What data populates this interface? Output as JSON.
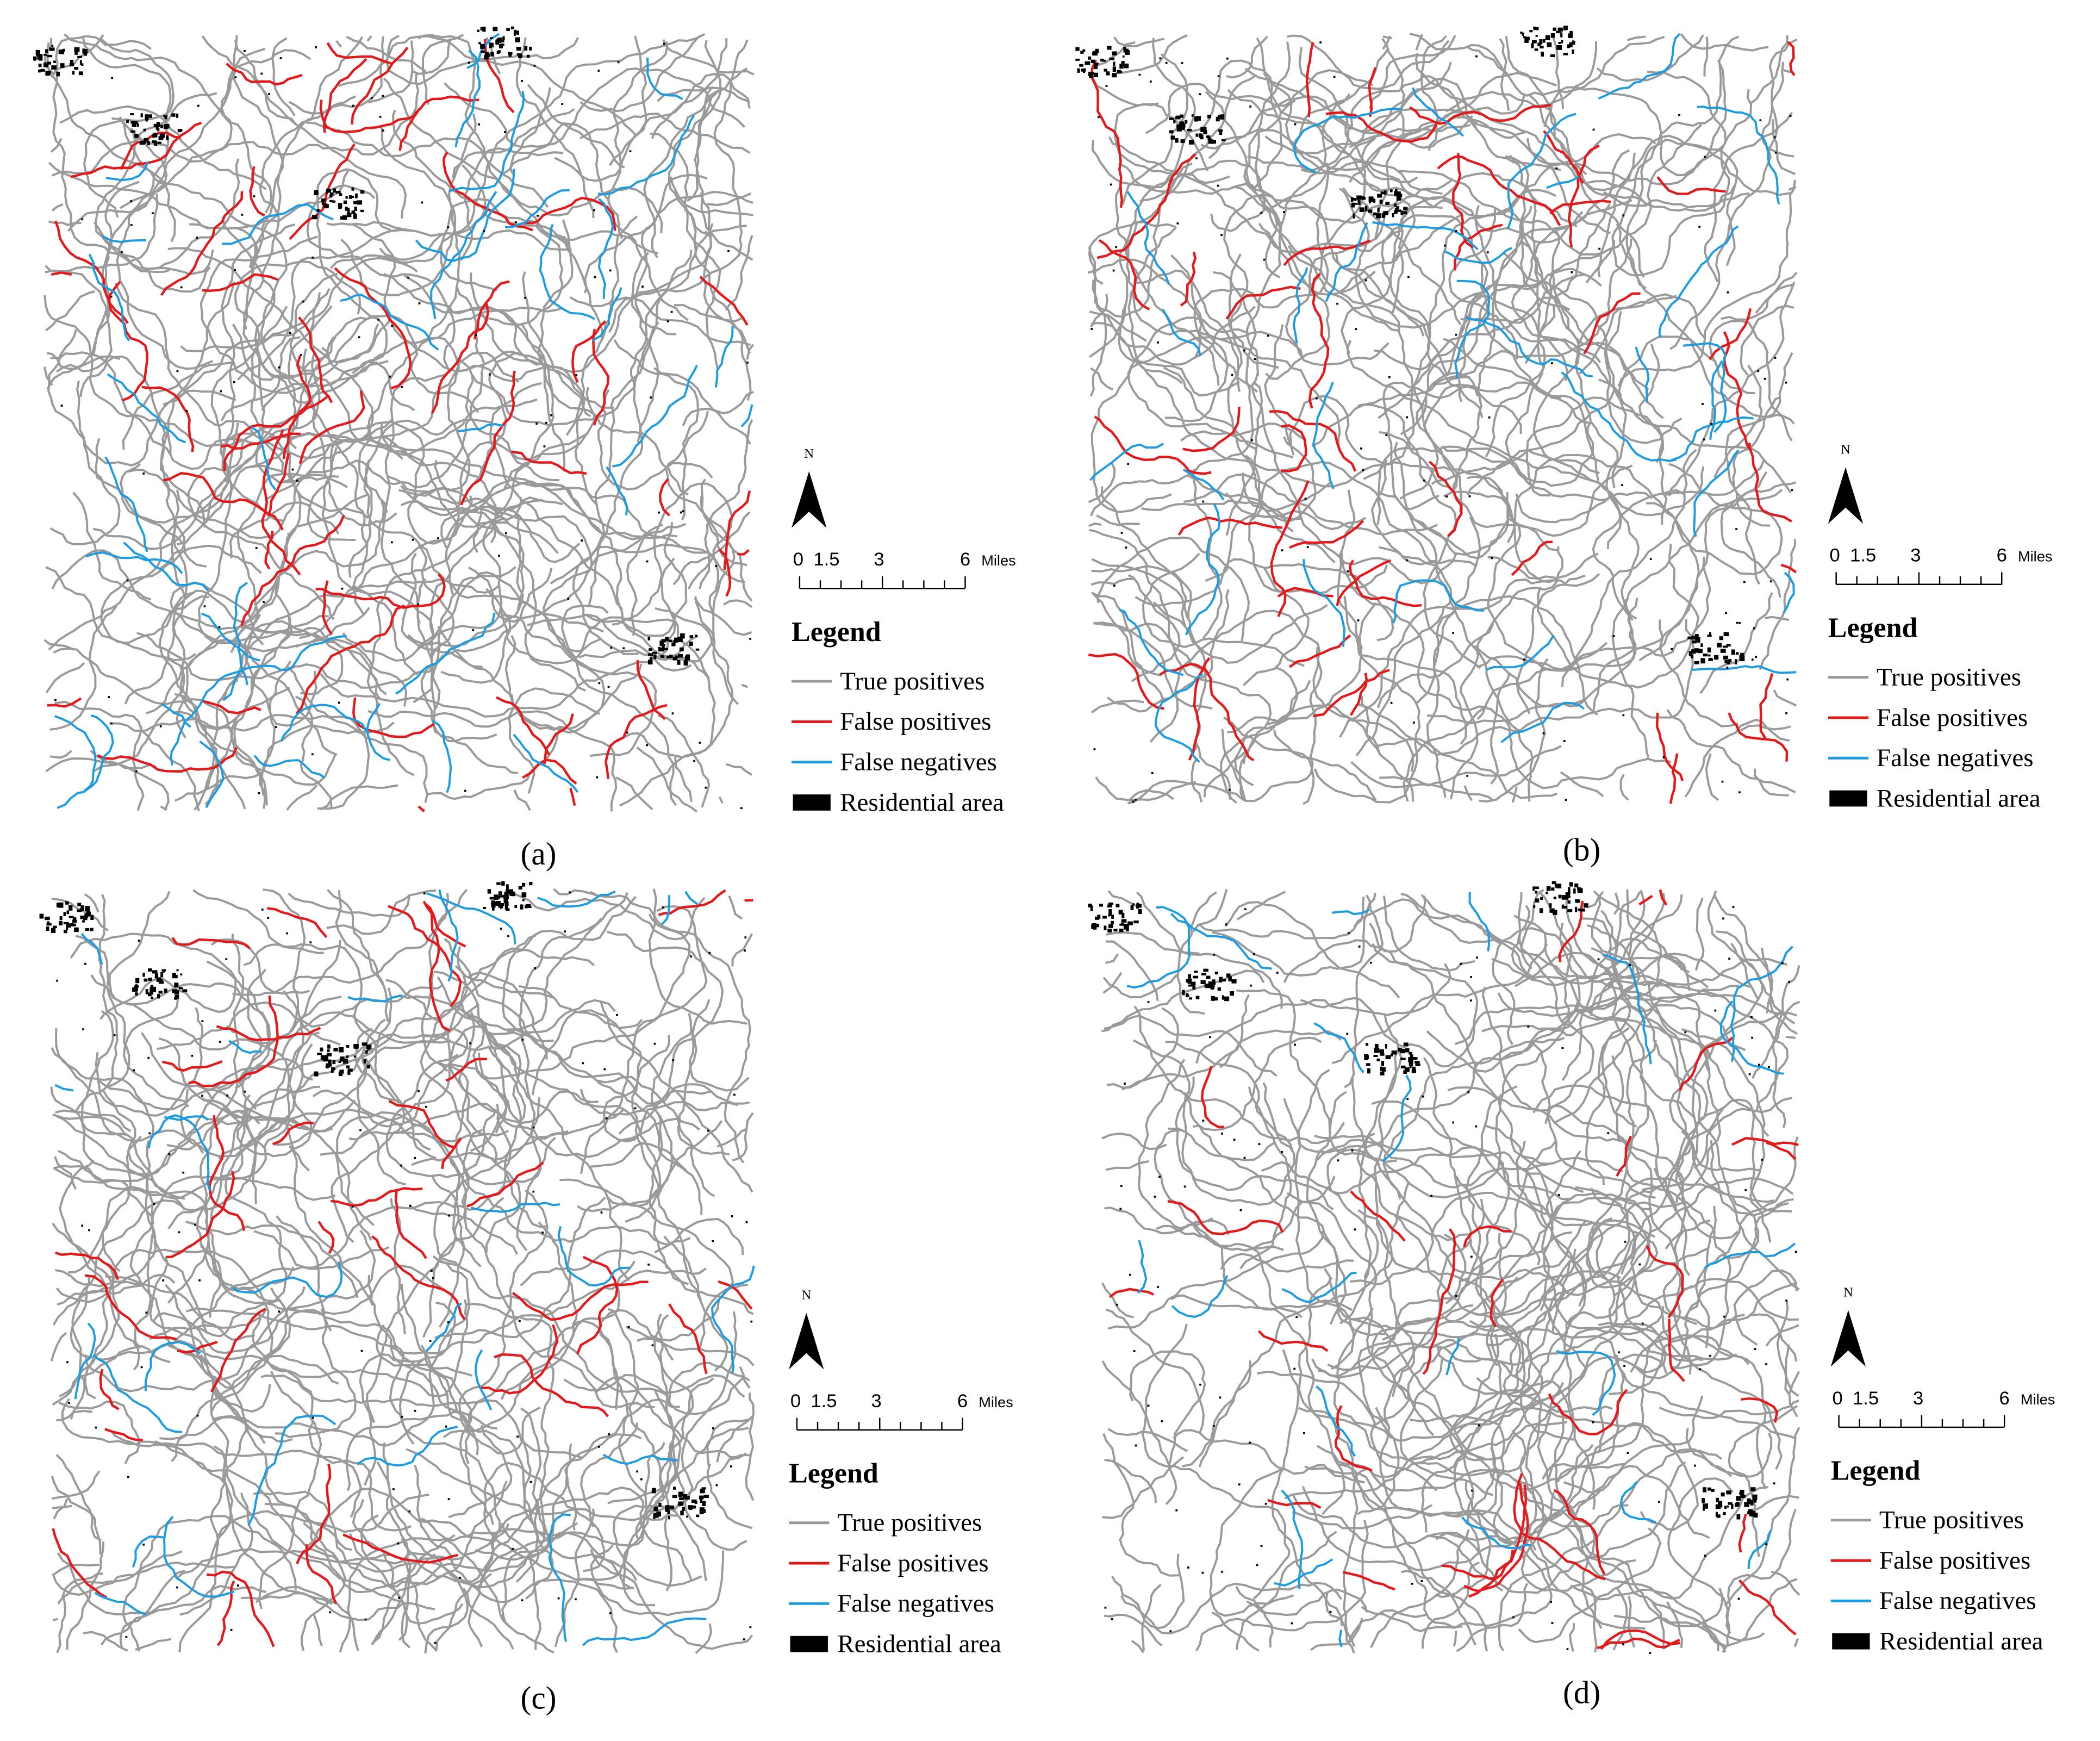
{
  "panels": [
    {
      "label": "(a)"
    },
    {
      "label": "(b)"
    },
    {
      "label": "(c)"
    },
    {
      "label": "(d)"
    }
  ],
  "legend": {
    "north": "N",
    "scale_labels": [
      "0",
      "1.5",
      "3",
      "6"
    ],
    "scale_unit": "Miles",
    "title": "Legend",
    "items": [
      "True positives",
      "False positives",
      "False negatives",
      "Residential area"
    ]
  }
}
